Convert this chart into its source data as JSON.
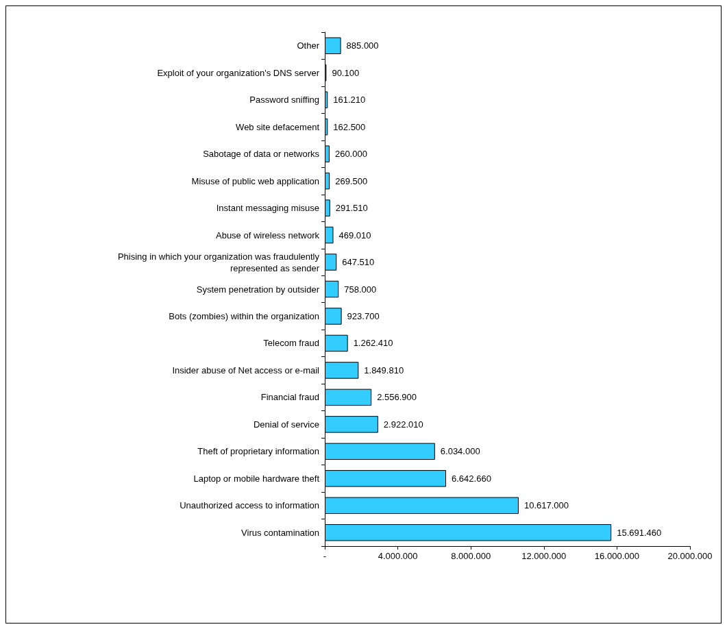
{
  "chart_data": {
    "type": "bar",
    "orientation": "horizontal",
    "categories": [
      "Other",
      "Exploit of your organization's DNS server",
      "Password sniffing",
      "Web site defacement",
      "Sabotage of data or networks",
      "Misuse of public web application",
      "Instant messaging misuse",
      "Abuse of wireless network",
      "Phising in which your organization was fraudulently represented as sender",
      "System penetration by outsider",
      "Bots (zombies) within the organization",
      "Telecom fraud",
      "Insider abuse of Net access or e-mail",
      "Financial fraud",
      "Denial of service",
      "Theft of proprietary information",
      "Laptop or mobile hardware theft",
      "Unauthorized access to information",
      "Virus contamination"
    ],
    "values": [
      885000,
      90100,
      161210,
      162500,
      260000,
      269500,
      291510,
      469010,
      647510,
      758000,
      923700,
      1262410,
      1849810,
      2556900,
      2922010,
      6034000,
      6642660,
      10617000,
      15691460
    ],
    "value_labels": [
      "885.000",
      "90.100",
      "161.210",
      "162.500",
      "260.000",
      "269.500",
      "291.510",
      "469.010",
      "647.510",
      "758.000",
      "923.700",
      "1.262.410",
      "1.849.810",
      "2.556.900",
      "2.922.010",
      "6.034.000",
      "6.642.660",
      "10.617.000",
      "15.691.460"
    ],
    "color": "#33ccff",
    "xlim": [
      0,
      20000000
    ],
    "xticks": [
      {
        "value": 0,
        "label": "-"
      },
      {
        "value": 4000000,
        "label": "4.000.000"
      },
      {
        "value": 8000000,
        "label": "8.000.000"
      },
      {
        "value": 12000000,
        "label": "12.000.000"
      },
      {
        "value": 16000000,
        "label": "16.000.000"
      },
      {
        "value": 20000000,
        "label": "20.000.000"
      }
    ],
    "tick_labels": true
  }
}
